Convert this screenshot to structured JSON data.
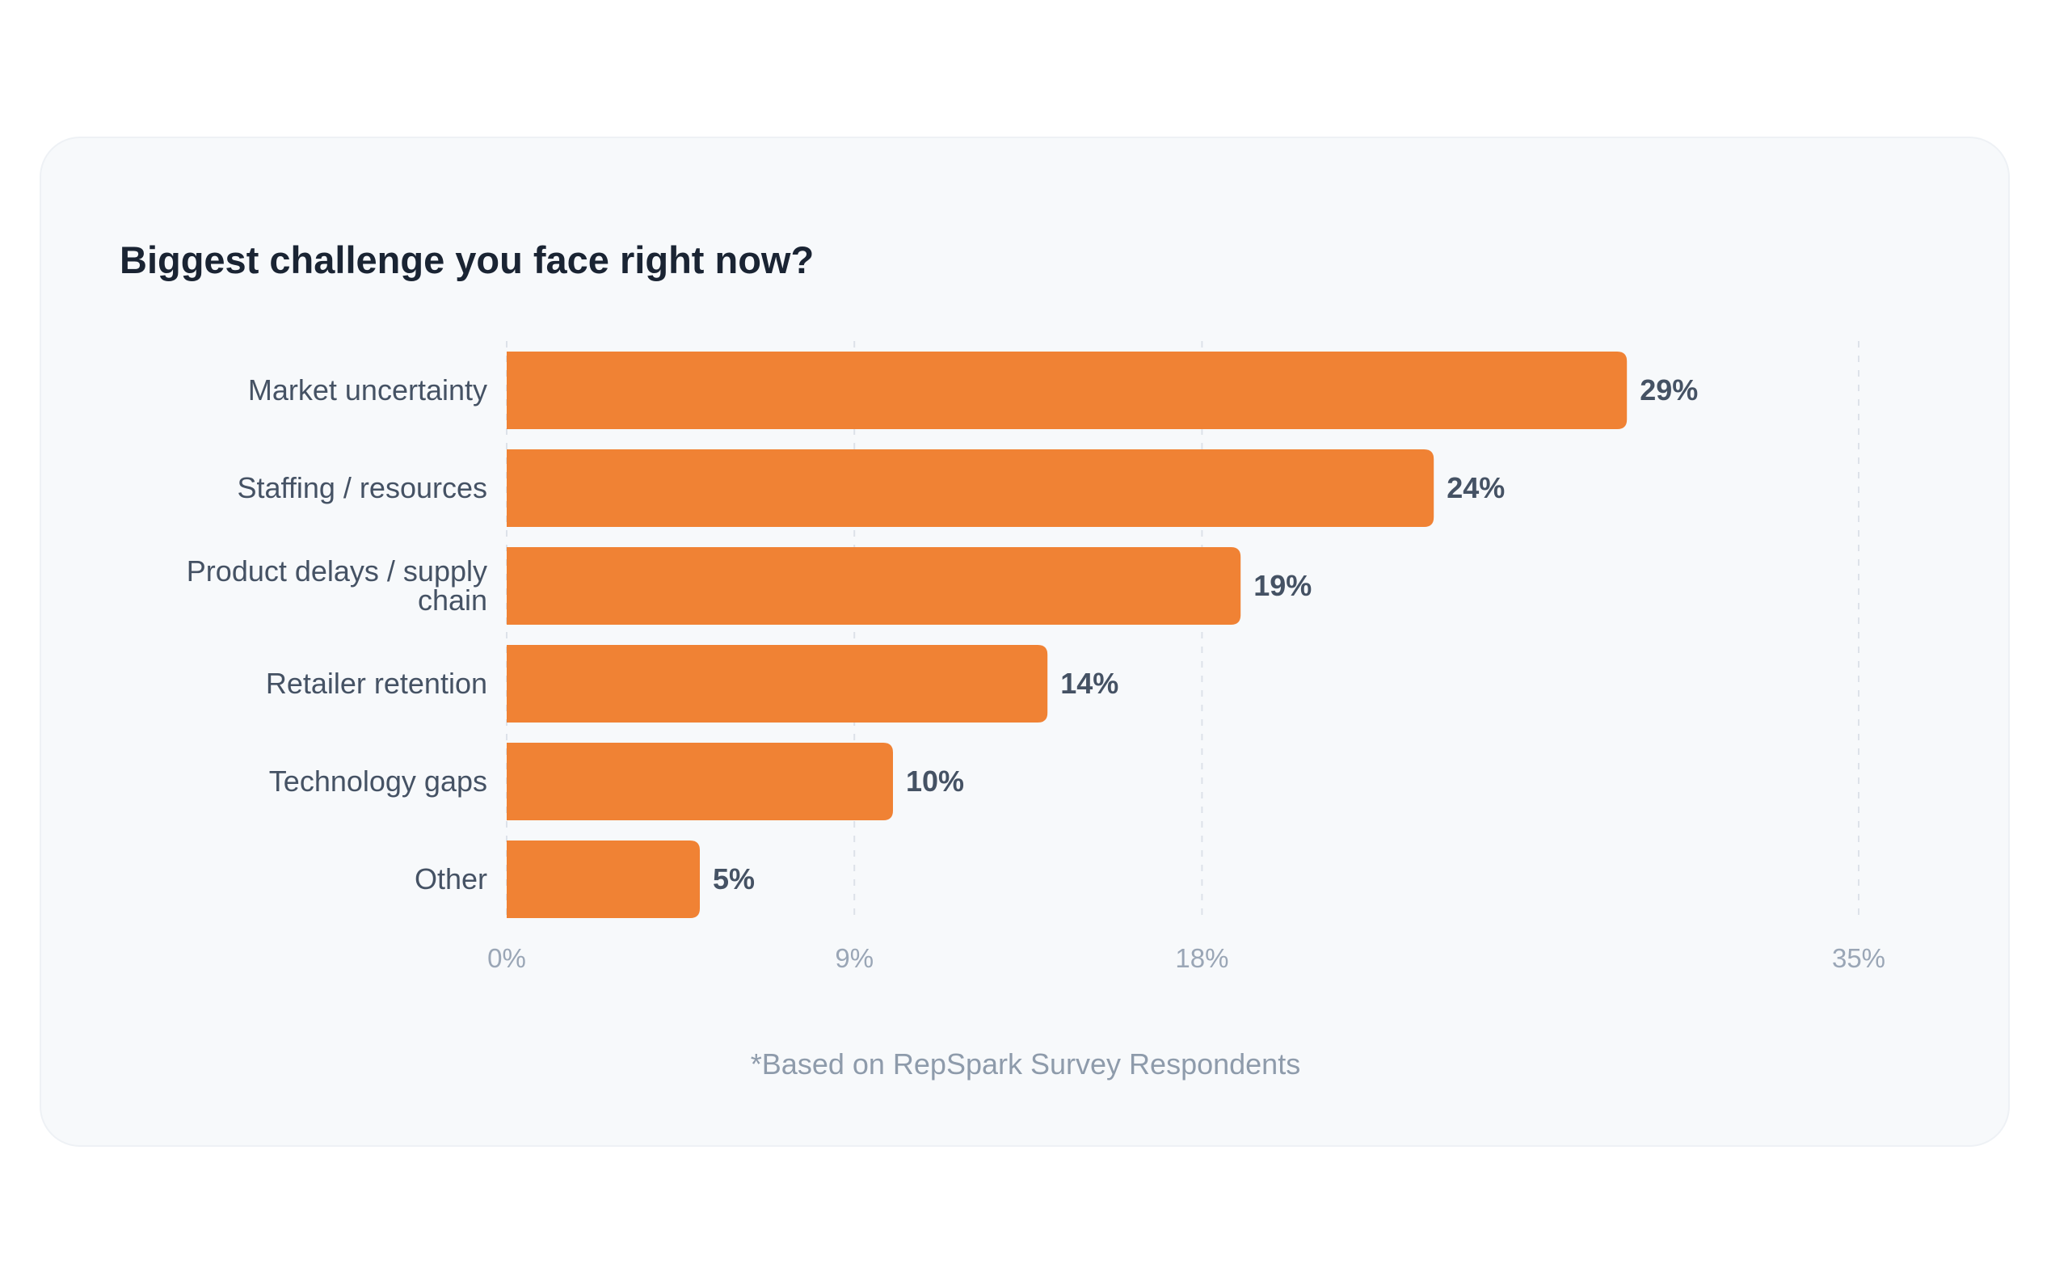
{
  "chart_data": {
    "type": "bar",
    "orientation": "horizontal",
    "title": "Biggest challenge you face right now?",
    "categories": [
      [
        "Market uncertainty"
      ],
      [
        "Staffing / resources"
      ],
      [
        "Product delays / supply",
        "chain"
      ],
      [
        "Retailer retention"
      ],
      [
        "Technology gaps"
      ],
      [
        "Other"
      ]
    ],
    "values": [
      29,
      24,
      19,
      14,
      10,
      5
    ],
    "value_labels": [
      "29%",
      "24%",
      "19%",
      "14%",
      "10%",
      "5%"
    ],
    "xlim": [
      0,
      35
    ],
    "ticks": [
      0,
      9,
      18,
      35
    ],
    "tick_labels": [
      "0%",
      "9%",
      "18%",
      "35%"
    ],
    "grid": "vertical dashed",
    "bar_color": "#f08234",
    "footnote": "*Based on RepSpark Survey Respondents"
  }
}
